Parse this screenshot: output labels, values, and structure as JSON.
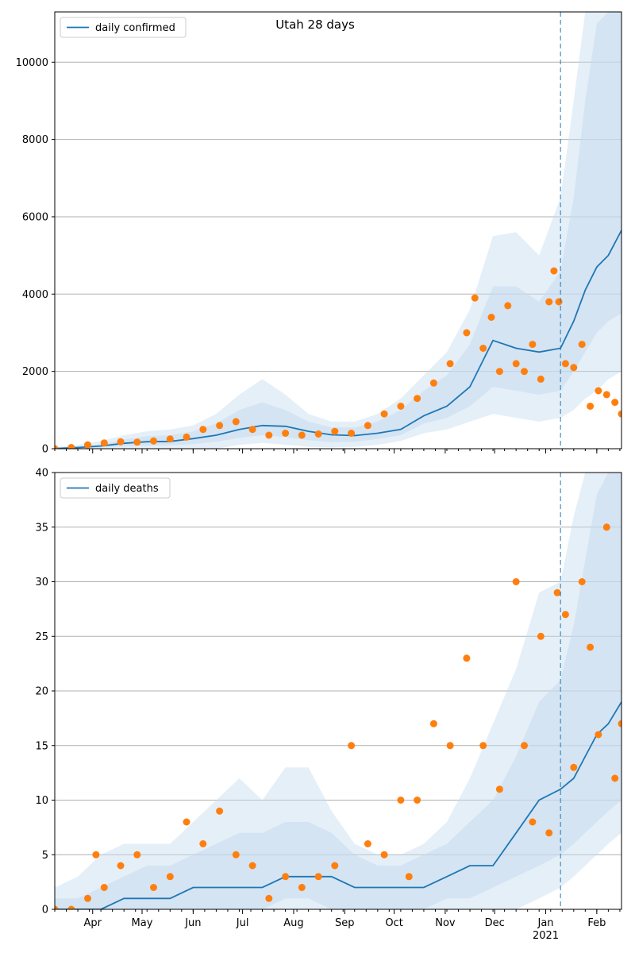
{
  "title": "Utah 28 days",
  "x_ticks": [
    "Apr",
    "May",
    "Jun",
    "Jul",
    "Aug",
    "Sep",
    "Oct",
    "Nov",
    "Dec",
    "Jan",
    "Feb"
  ],
  "x_year_label": "2021",
  "colors": {
    "line": "#1f77b4",
    "points": "#ff7f0e",
    "band": "#c6dbef",
    "grid": "#b0b0b0"
  },
  "chart_data": [
    {
      "type": "line",
      "name": "confirmed-panel",
      "legend": "daily confirmed",
      "ylim": [
        0,
        11300
      ],
      "yticks": [
        "0",
        "2000",
        "4000",
        "6000",
        "8000",
        "10000"
      ],
      "ytick_values": [
        0,
        2000,
        4000,
        6000,
        8000,
        10000
      ],
      "forecast_start_day": 307,
      "x_days": [
        0,
        14,
        28,
        42,
        56,
        70,
        84,
        98,
        112,
        126,
        140,
        154,
        168,
        182,
        196,
        210,
        224,
        238,
        252,
        266,
        280,
        294,
        307,
        315,
        322,
        329,
        336,
        344
      ],
      "median": [
        5,
        30,
        70,
        140,
        180,
        190,
        260,
        350,
        500,
        600,
        580,
        450,
        360,
        340,
        400,
        500,
        850,
        1100,
        1600,
        2800,
        2600,
        2500,
        2600,
        3300,
        4100,
        4700,
        5000,
        5650
      ],
      "obs_x": [
        0,
        10,
        20,
        30,
        40,
        50,
        60,
        70,
        80,
        90,
        100,
        110,
        120,
        130,
        140,
        150,
        160,
        170,
        180,
        190,
        200,
        210,
        220,
        230,
        240,
        250,
        255,
        260,
        265,
        270,
        275,
        280,
        285,
        290,
        295,
        300,
        303,
        306,
        310,
        315,
        320,
        325,
        330,
        335,
        340,
        344
      ],
      "obs_y": [
        0,
        30,
        100,
        150,
        180,
        170,
        200,
        250,
        300,
        500,
        600,
        700,
        500,
        350,
        400,
        350,
        380,
        450,
        400,
        600,
        900,
        1100,
        1300,
        1700,
        2200,
        3000,
        3900,
        2600,
        3400,
        2000,
        3700,
        2200,
        2000,
        2700,
        1800,
        3800,
        4600,
        3800,
        2200,
        2100,
        2700,
        1100,
        1500,
        1400,
        1200,
        900
      ],
      "band_outer_hi": [
        40,
        100,
        200,
        350,
        450,
        500,
        600,
        900,
        1400,
        1800,
        1400,
        900,
        700,
        700,
        900,
        1300,
        1900,
        2500,
        3600,
        5500,
        5600,
        5000,
        6500,
        9000,
        12000,
        14000,
        14000,
        14000
      ],
      "band_outer_lo": [
        0,
        0,
        0,
        0,
        0,
        0,
        0,
        0,
        100,
        150,
        100,
        50,
        30,
        50,
        100,
        200,
        400,
        500,
        700,
        900,
        800,
        700,
        800,
        1000,
        1300,
        1500,
        1800,
        2000
      ],
      "band_mid_hi": [
        20,
        60,
        120,
        240,
        320,
        350,
        450,
        650,
        1000,
        1200,
        1000,
        700,
        550,
        550,
        700,
        1000,
        1500,
        1900,
        2700,
        4200,
        4200,
        3800,
        4600,
        6500,
        9000,
        11000,
        12000,
        13000
      ],
      "band_mid_lo": [
        0,
        5,
        30,
        60,
        80,
        90,
        120,
        180,
        280,
        350,
        300,
        220,
        170,
        180,
        250,
        350,
        650,
        800,
        1100,
        1600,
        1500,
        1400,
        1500,
        2000,
        2500,
        3000,
        3300,
        3500
      ]
    },
    {
      "type": "line",
      "name": "deaths-panel",
      "legend": "daily deaths",
      "ylim": [
        0,
        40
      ],
      "yticks": [
        "0",
        "5",
        "10",
        "15",
        "20",
        "25",
        "30",
        "35",
        "40"
      ],
      "ytick_values": [
        0,
        5,
        10,
        15,
        20,
        25,
        30,
        35,
        40
      ],
      "forecast_start_day": 307,
      "x_days": [
        0,
        14,
        28,
        42,
        56,
        70,
        84,
        98,
        112,
        126,
        140,
        154,
        168,
        182,
        196,
        210,
        224,
        238,
        252,
        266,
        280,
        294,
        307,
        315,
        322,
        329,
        336,
        344
      ],
      "median": [
        0,
        0,
        0,
        1,
        1,
        1,
        2,
        2,
        2,
        2,
        3,
        3,
        3,
        2,
        2,
        2,
        2,
        3,
        4,
        4,
        7,
        10,
        11,
        12,
        14,
        16,
        17,
        19
      ],
      "obs_x": [
        0,
        10,
        20,
        25,
        30,
        40,
        50,
        60,
        70,
        80,
        90,
        100,
        110,
        120,
        130,
        140,
        150,
        160,
        170,
        180,
        190,
        200,
        210,
        215,
        220,
        230,
        240,
        250,
        260,
        270,
        280,
        285,
        290,
        295,
        300,
        305,
        310,
        315,
        320,
        325,
        330,
        335,
        340,
        344
      ],
      "obs_y": [
        0,
        0,
        1,
        5,
        2,
        4,
        5,
        2,
        3,
        8,
        6,
        9,
        5,
        4,
        1,
        3,
        2,
        3,
        4,
        15,
        6,
        5,
        10,
        3,
        10,
        17,
        15,
        23,
        15,
        11,
        30,
        15,
        8,
        25,
        7,
        29,
        27,
        13,
        30,
        24,
        16,
        35,
        12,
        17
      ],
      "band_outer_hi": [
        2,
        3,
        5,
        6,
        6,
        6,
        8,
        10,
        12,
        10,
        13,
        13,
        9,
        6,
        5,
        5,
        6,
        8,
        12,
        17,
        22,
        29,
        30,
        36,
        45,
        50,
        55,
        60
      ],
      "band_outer_lo": [
        0,
        0,
        0,
        0,
        0,
        0,
        0,
        0,
        0,
        0,
        0,
        0,
        0,
        0,
        0,
        0,
        0,
        0,
        0,
        0,
        0,
        1,
        2,
        3,
        4,
        5,
        6,
        7
      ],
      "band_mid_hi": [
        1,
        1,
        2,
        3,
        4,
        4,
        5,
        6,
        7,
        7,
        8,
        8,
        7,
        5,
        4,
        4,
        5,
        6,
        8,
        10,
        14,
        19,
        21,
        26,
        32,
        38,
        44,
        50
      ],
      "band_mid_lo": [
        0,
        0,
        0,
        0,
        0,
        0,
        0,
        0,
        0,
        0,
        1,
        1,
        0,
        0,
        0,
        0,
        0,
        1,
        1,
        2,
        3,
        4,
        5,
        6,
        7,
        8,
        9,
        10
      ]
    }
  ]
}
